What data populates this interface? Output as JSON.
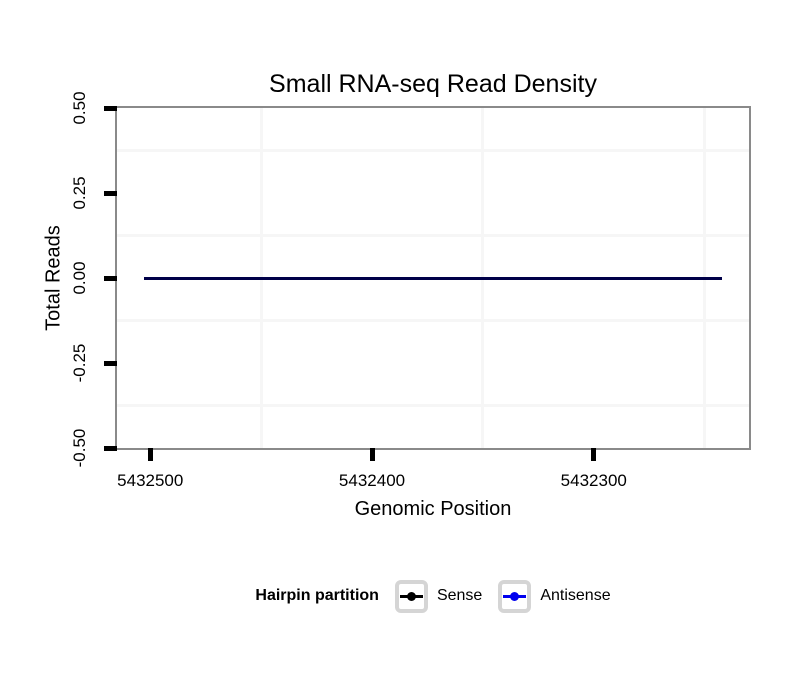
{
  "chart_data": {
    "type": "line",
    "title": "Small RNA-seq Read Density",
    "xlabel": "Genomic Position",
    "ylabel": "Total Reads",
    "x_axis": {
      "reversed": true,
      "domain": [
        5432515,
        5432230
      ],
      "ticks": [
        5432500,
        5432400,
        5432300
      ],
      "tick_labels": [
        "5432500",
        "5432400",
        "5432300"
      ],
      "minor_gridlines": [
        5432450,
        5432350,
        5432250
      ]
    },
    "y_axis": {
      "domain": [
        -0.5,
        0.5
      ],
      "ticks": [
        0.5,
        0.25,
        0,
        -0.25,
        -0.5
      ],
      "tick_labels": [
        "0.50",
        "0.25",
        "0.00",
        "-0.25",
        "-0.50"
      ],
      "minor_gridlines": [
        0.375,
        0.125,
        -0.125,
        -0.375
      ]
    },
    "series": [
      {
        "name": "Sense",
        "color": "#000000",
        "x": [
          5432503,
          5432242
        ],
        "values": [
          0,
          0
        ]
      },
      {
        "name": "Antisense",
        "color": "#0000EE",
        "x": [
          5432503,
          5432242
        ],
        "values": [
          0,
          0
        ]
      }
    ],
    "legend": {
      "title": "Hairpin partition",
      "position": "bottom",
      "entries": [
        {
          "label": "Sense",
          "color": "#000000"
        },
        {
          "label": "Antisense",
          "color": "#0000EE"
        }
      ]
    },
    "grid": "minor-only",
    "colors": {
      "background": "#FFFFFF",
      "panel_border": "#8A8A8A",
      "gridline": "#F6F6F6",
      "tick": "#000000",
      "legend_key_border": "#D5D5D5"
    }
  }
}
